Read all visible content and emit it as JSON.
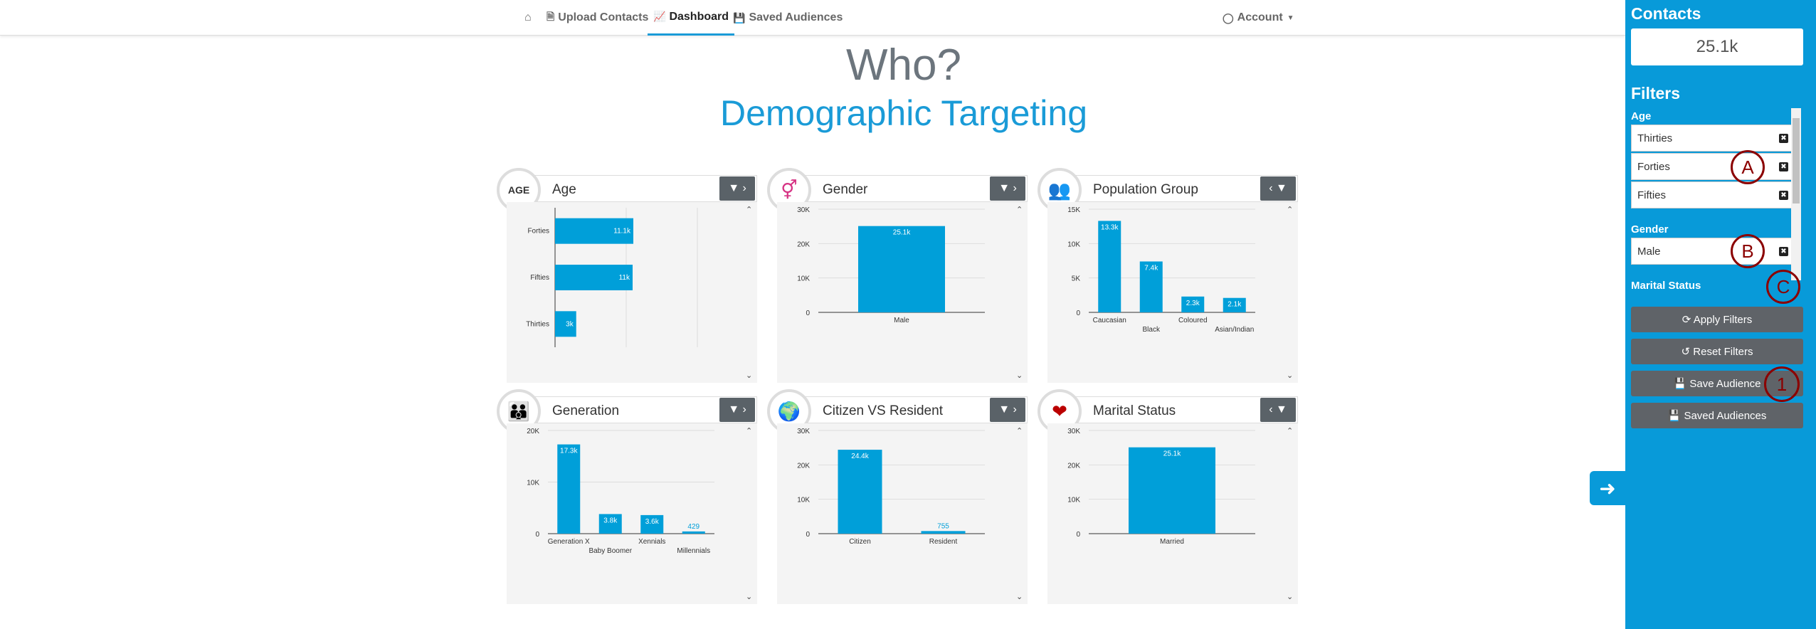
{
  "nav": {
    "home_icon": "home-icon",
    "items": [
      {
        "label": "Upload Contacts",
        "icon": "📄"
      },
      {
        "label": "Dashboard",
        "icon": "📈"
      },
      {
        "label": "Saved Audiences",
        "icon": "💾"
      }
    ],
    "account": "Account"
  },
  "main": {
    "heading": "Who?",
    "subheading": "Demographic Targeting"
  },
  "cards": [
    {
      "title": "Age",
      "icon_text": "AGE"
    },
    {
      "title": "Gender",
      "icon_text": "⚥"
    },
    {
      "title": "Population Group",
      "icon_text": "👥"
    },
    {
      "title": "Generation",
      "icon_text": "👪"
    },
    {
      "title": "Citizen VS Resident",
      "icon_text": "🌍"
    },
    {
      "title": "Marital Status",
      "icon_text": "❤"
    }
  ],
  "chart_data": [
    {
      "type": "bar",
      "orientation": "horizontal",
      "title": "Age",
      "categories": [
        "Forties",
        "Fifties",
        "Thirties"
      ],
      "values": [
        11100,
        11000,
        3000
      ],
      "labels": [
        "11.1k",
        "11k",
        "3k"
      ]
    },
    {
      "type": "bar",
      "title": "Gender",
      "categories": [
        "Male"
      ],
      "values": [
        25100
      ],
      "labels": [
        "25.1k"
      ],
      "yticks": [
        "0",
        "10K",
        "20K",
        "30K"
      ],
      "ylim": [
        0,
        30000
      ]
    },
    {
      "type": "bar",
      "title": "Population Group",
      "categories": [
        "Caucasian",
        "Black",
        "Coloured",
        "Asian/Indian"
      ],
      "values": [
        13300,
        7400,
        2300,
        2100
      ],
      "labels": [
        "13.3k",
        "7.4k",
        "2.3k",
        "2.1k"
      ],
      "yticks": [
        "0",
        "5K",
        "10K",
        "15K"
      ],
      "ylim": [
        0,
        15000
      ]
    },
    {
      "type": "bar",
      "title": "Generation",
      "categories": [
        "Generation X",
        "Baby Boomer",
        "Xennials",
        "Millennials"
      ],
      "values": [
        17300,
        3800,
        3600,
        429
      ],
      "labels": [
        "17.3k",
        "3.8k",
        "3.6k",
        "429"
      ],
      "yticks": [
        "0",
        "10K",
        "20K"
      ],
      "ylim": [
        0,
        20000
      ]
    },
    {
      "type": "bar",
      "title": "Citizen VS Resident",
      "categories": [
        "Citizen",
        "Resident"
      ],
      "values": [
        24400,
        755
      ],
      "labels": [
        "24.4k",
        "755"
      ],
      "yticks": [
        "0",
        "10K",
        "20K",
        "30K"
      ],
      "ylim": [
        0,
        30000
      ]
    },
    {
      "type": "bar",
      "title": "Marital Status",
      "categories": [
        "Married"
      ],
      "values": [
        25100
      ],
      "labels": [
        "25.1k"
      ],
      "yticks": [
        "0",
        "10K",
        "20K",
        "30K"
      ],
      "ylim": [
        0,
        30000
      ]
    }
  ],
  "sidebar": {
    "contacts_title": "Contacts",
    "contacts_value": "25.1k",
    "filters_title": "Filters",
    "age_label": "Age",
    "age_items": [
      "Thirties",
      "Forties",
      "Fifties"
    ],
    "gender_label": "Gender",
    "gender_items": [
      "Male"
    ],
    "marital_label": "Marital Status",
    "buttons": {
      "apply": "⟳ Apply Filters",
      "reset": "↺ Reset Filters",
      "save": "💾 Save Audience",
      "saved": "💾 Saved Audiences"
    }
  },
  "markers": {
    "a": "A",
    "b": "B",
    "c": "C",
    "one": "1"
  }
}
